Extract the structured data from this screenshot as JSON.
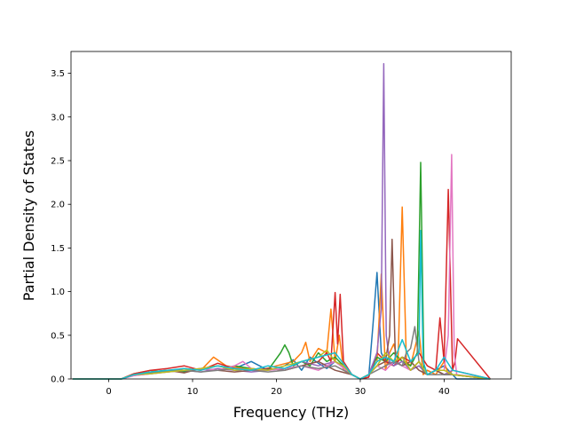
{
  "chart_data": {
    "type": "line",
    "title": "",
    "xlabel": "Frequency (THz)",
    "ylabel": "Partial Density of States",
    "xlim": [
      -4.5,
      48
    ],
    "ylim": [
      0,
      3.75
    ],
    "xticks": [
      0,
      10,
      20,
      30,
      40
    ],
    "yticks": [
      0.0,
      0.5,
      1.0,
      1.5,
      2.0,
      2.5,
      3.0,
      3.5
    ],
    "xtick_labels": [
      "0",
      "10",
      "20",
      "30",
      "40"
    ],
    "ytick_labels": [
      "0.0",
      "0.5",
      "1.0",
      "1.5",
      "2.0",
      "2.5",
      "3.0",
      "3.5"
    ],
    "grid": false,
    "legend": "none",
    "series": [
      {
        "color": "#1f77b4",
        "x": [
          -4.3,
          1.5,
          3,
          5,
          7,
          9,
          11,
          13,
          15,
          17,
          19,
          21,
          22,
          23,
          24,
          25,
          26,
          27,
          28,
          29,
          30,
          31,
          31.5,
          32,
          32.5,
          33,
          34,
          35,
          36,
          37,
          38,
          39,
          40,
          41,
          41.5,
          45.5
        ],
        "y": [
          0,
          0,
          0.05,
          0.08,
          0.1,
          0.09,
          0.12,
          0.15,
          0.12,
          0.2,
          0.1,
          0.15,
          0.22,
          0.1,
          0.25,
          0.18,
          0.12,
          0.2,
          0.15,
          0.05,
          0,
          0.02,
          0.6,
          1.22,
          0.3,
          0.2,
          0.18,
          0.25,
          0.1,
          0.2,
          0.05,
          0.1,
          0.15,
          0.05,
          0,
          0
        ]
      },
      {
        "color": "#ff7f0e",
        "x": [
          -4.3,
          1.5,
          3,
          5,
          7,
          9,
          11,
          12.5,
          14,
          16,
          18,
          20,
          22,
          23,
          23.5,
          24,
          25,
          26,
          26.5,
          27,
          27.5,
          28,
          29,
          30,
          31,
          32,
          32.5,
          33,
          33.5,
          34,
          34.5,
          35,
          35.5,
          36,
          37,
          37.5,
          38,
          39,
          40,
          40.5,
          41,
          45.5
        ],
        "y": [
          0,
          0,
          0.06,
          0.1,
          0.08,
          0.12,
          0.1,
          0.25,
          0.15,
          0.12,
          0.1,
          0.15,
          0.2,
          0.3,
          0.42,
          0.2,
          0.35,
          0.3,
          0.8,
          0.2,
          0.5,
          0.1,
          0.05,
          0,
          0.05,
          0.2,
          1.2,
          0.1,
          0.3,
          0.4,
          0.2,
          1.97,
          0.2,
          0.15,
          0.55,
          0.05,
          0.1,
          0.05,
          0.2,
          0.05,
          0.1,
          0
        ]
      },
      {
        "color": "#2ca02c",
        "x": [
          -4.3,
          1.5,
          3,
          5,
          7,
          9,
          11,
          13,
          15,
          17,
          19,
          20.5,
          21,
          21.5,
          22,
          23,
          24,
          25,
          26,
          27,
          28,
          29,
          30,
          31,
          32,
          33,
          34,
          35,
          36,
          36.8,
          37.2,
          37.6,
          38,
          39,
          40,
          41,
          45.5
        ],
        "y": [
          0,
          0,
          0.05,
          0.07,
          0.1,
          0.08,
          0.12,
          0.1,
          0.15,
          0.12,
          0.1,
          0.3,
          0.39,
          0.3,
          0.15,
          0.2,
          0.15,
          0.3,
          0.2,
          0.25,
          0.15,
          0.05,
          0,
          0.05,
          0.25,
          0.2,
          0.3,
          0.2,
          0.15,
          0.3,
          2.48,
          0.1,
          0.05,
          0.1,
          0.05,
          0.05,
          0
        ]
      },
      {
        "color": "#d62728",
        "x": [
          -4.3,
          1.5,
          3,
          5,
          7,
          9,
          11,
          13,
          15,
          17,
          19,
          21,
          23,
          25,
          26,
          26.5,
          27,
          27.3,
          27.6,
          28,
          29,
          30,
          31,
          32,
          33,
          34,
          35,
          36,
          37,
          38,
          39,
          39.5,
          40,
          40.5,
          41,
          41.3,
          41.6,
          45.5
        ],
        "y": [
          0,
          0,
          0.06,
          0.1,
          0.12,
          0.15,
          0.1,
          0.18,
          0.12,
          0.1,
          0.12,
          0.1,
          0.15,
          0.2,
          0.3,
          0.2,
          0.99,
          0.4,
          0.97,
          0.2,
          0.05,
          0,
          0.02,
          0.3,
          0.2,
          0.15,
          0.25,
          0.2,
          0.3,
          0.15,
          0.1,
          0.7,
          0.2,
          2.17,
          0.1,
          0.2,
          0.46,
          0
        ]
      },
      {
        "color": "#9467bd",
        "x": [
          -4.3,
          1.5,
          3,
          5,
          7,
          9,
          11,
          13,
          15,
          17,
          19,
          21,
          23,
          25,
          27,
          29,
          30,
          31,
          32,
          32.5,
          32.8,
          33.1,
          33.5,
          34,
          35,
          36,
          37,
          38,
          39,
          40,
          41,
          45.5
        ],
        "y": [
          0,
          0,
          0.04,
          0.06,
          0.08,
          0.1,
          0.08,
          0.12,
          0.1,
          0.08,
          0.1,
          0.12,
          0.2,
          0.15,
          0.2,
          0.05,
          0,
          0.05,
          0.3,
          0.8,
          3.61,
          0.5,
          0.2,
          0.15,
          0.2,
          0.1,
          0.15,
          0.05,
          0.1,
          0.05,
          0.1,
          0
        ]
      },
      {
        "color": "#8c564b",
        "x": [
          -4.3,
          1.5,
          3,
          5,
          7,
          9,
          11,
          13,
          15,
          17,
          19,
          21,
          23,
          25,
          27,
          29,
          30,
          31,
          32,
          33,
          33.5,
          33.8,
          34.2,
          35,
          36,
          37,
          38,
          39,
          40,
          41,
          45.5
        ],
        "y": [
          0,
          0,
          0.05,
          0.08,
          0.1,
          0.07,
          0.12,
          0.1,
          0.08,
          0.1,
          0.12,
          0.1,
          0.15,
          0.2,
          0.1,
          0.05,
          0,
          0.05,
          0.15,
          0.2,
          0.5,
          1.6,
          0.2,
          0.15,
          0.2,
          0.1,
          0.05,
          0.1,
          0.05,
          0.05,
          0
        ]
      },
      {
        "color": "#e377c2",
        "x": [
          -4.3,
          1.5,
          3,
          5,
          7,
          9,
          11,
          13,
          15,
          16,
          17,
          19,
          21,
          23,
          25,
          27,
          29,
          30,
          31,
          32,
          33,
          34,
          35,
          36,
          37,
          38,
          39,
          40,
          40.5,
          40.9,
          41.2,
          41.5,
          45.5
        ],
        "y": [
          0,
          0,
          0.04,
          0.06,
          0.08,
          0.1,
          0.12,
          0.1,
          0.15,
          0.2,
          0.12,
          0.1,
          0.12,
          0.15,
          0.1,
          0.2,
          0.05,
          0,
          0.05,
          0.15,
          0.1,
          0.2,
          0.15,
          0.1,
          0.2,
          0.05,
          0.1,
          0.1,
          0.5,
          2.57,
          0.3,
          0.05,
          0
        ]
      },
      {
        "color": "#7f7f7f",
        "x": [
          -4.3,
          1.5,
          3,
          5,
          7,
          9,
          11,
          13,
          15,
          17,
          19,
          21,
          23,
          25,
          27,
          29,
          30,
          31,
          32,
          33,
          34,
          35,
          35.5,
          36,
          36.5,
          37,
          37.5,
          38,
          39,
          40,
          41,
          45.5
        ],
        "y": [
          0,
          0,
          0.05,
          0.07,
          0.09,
          0.1,
          0.08,
          0.1,
          0.12,
          0.1,
          0.08,
          0.1,
          0.15,
          0.12,
          0.15,
          0.05,
          0,
          0.05,
          0.1,
          0.15,
          0.2,
          0.15,
          0.3,
          0.35,
          0.6,
          0.2,
          0.1,
          0.05,
          0.05,
          0.05,
          0.05,
          0
        ]
      },
      {
        "color": "#bcbd22",
        "x": [
          -4.3,
          1.5,
          3,
          5,
          7,
          9,
          11,
          13,
          15,
          17,
          19,
          21,
          23,
          25,
          26,
          27,
          28,
          29,
          30,
          31,
          32,
          33,
          34,
          35,
          36,
          37,
          38,
          39,
          40,
          41,
          45.5
        ],
        "y": [
          0,
          0,
          0.05,
          0.06,
          0.08,
          0.1,
          0.12,
          0.15,
          0.1,
          0.12,
          0.1,
          0.15,
          0.2,
          0.25,
          0.33,
          0.2,
          0.15,
          0.05,
          0,
          0.05,
          0.15,
          0.3,
          0.2,
          0.25,
          0.1,
          0.2,
          0.05,
          0.1,
          0.1,
          0.05,
          0
        ]
      },
      {
        "color": "#17becf",
        "x": [
          -4.3,
          1.5,
          3,
          5,
          7,
          9,
          11,
          13,
          15,
          17,
          19,
          21,
          23,
          25,
          27,
          29,
          30,
          31,
          32,
          33,
          34,
          35,
          36,
          37,
          37.2,
          37.5,
          38,
          39,
          40,
          41,
          45.5
        ],
        "y": [
          0,
          0,
          0.05,
          0.08,
          0.1,
          0.12,
          0.1,
          0.15,
          0.12,
          0.1,
          0.15,
          0.12,
          0.2,
          0.25,
          0.3,
          0.05,
          0,
          0.05,
          0.2,
          0.25,
          0.2,
          0.45,
          0.2,
          0.3,
          1.7,
          0.2,
          0.05,
          0.1,
          0.25,
          0.1,
          0
        ]
      }
    ]
  }
}
